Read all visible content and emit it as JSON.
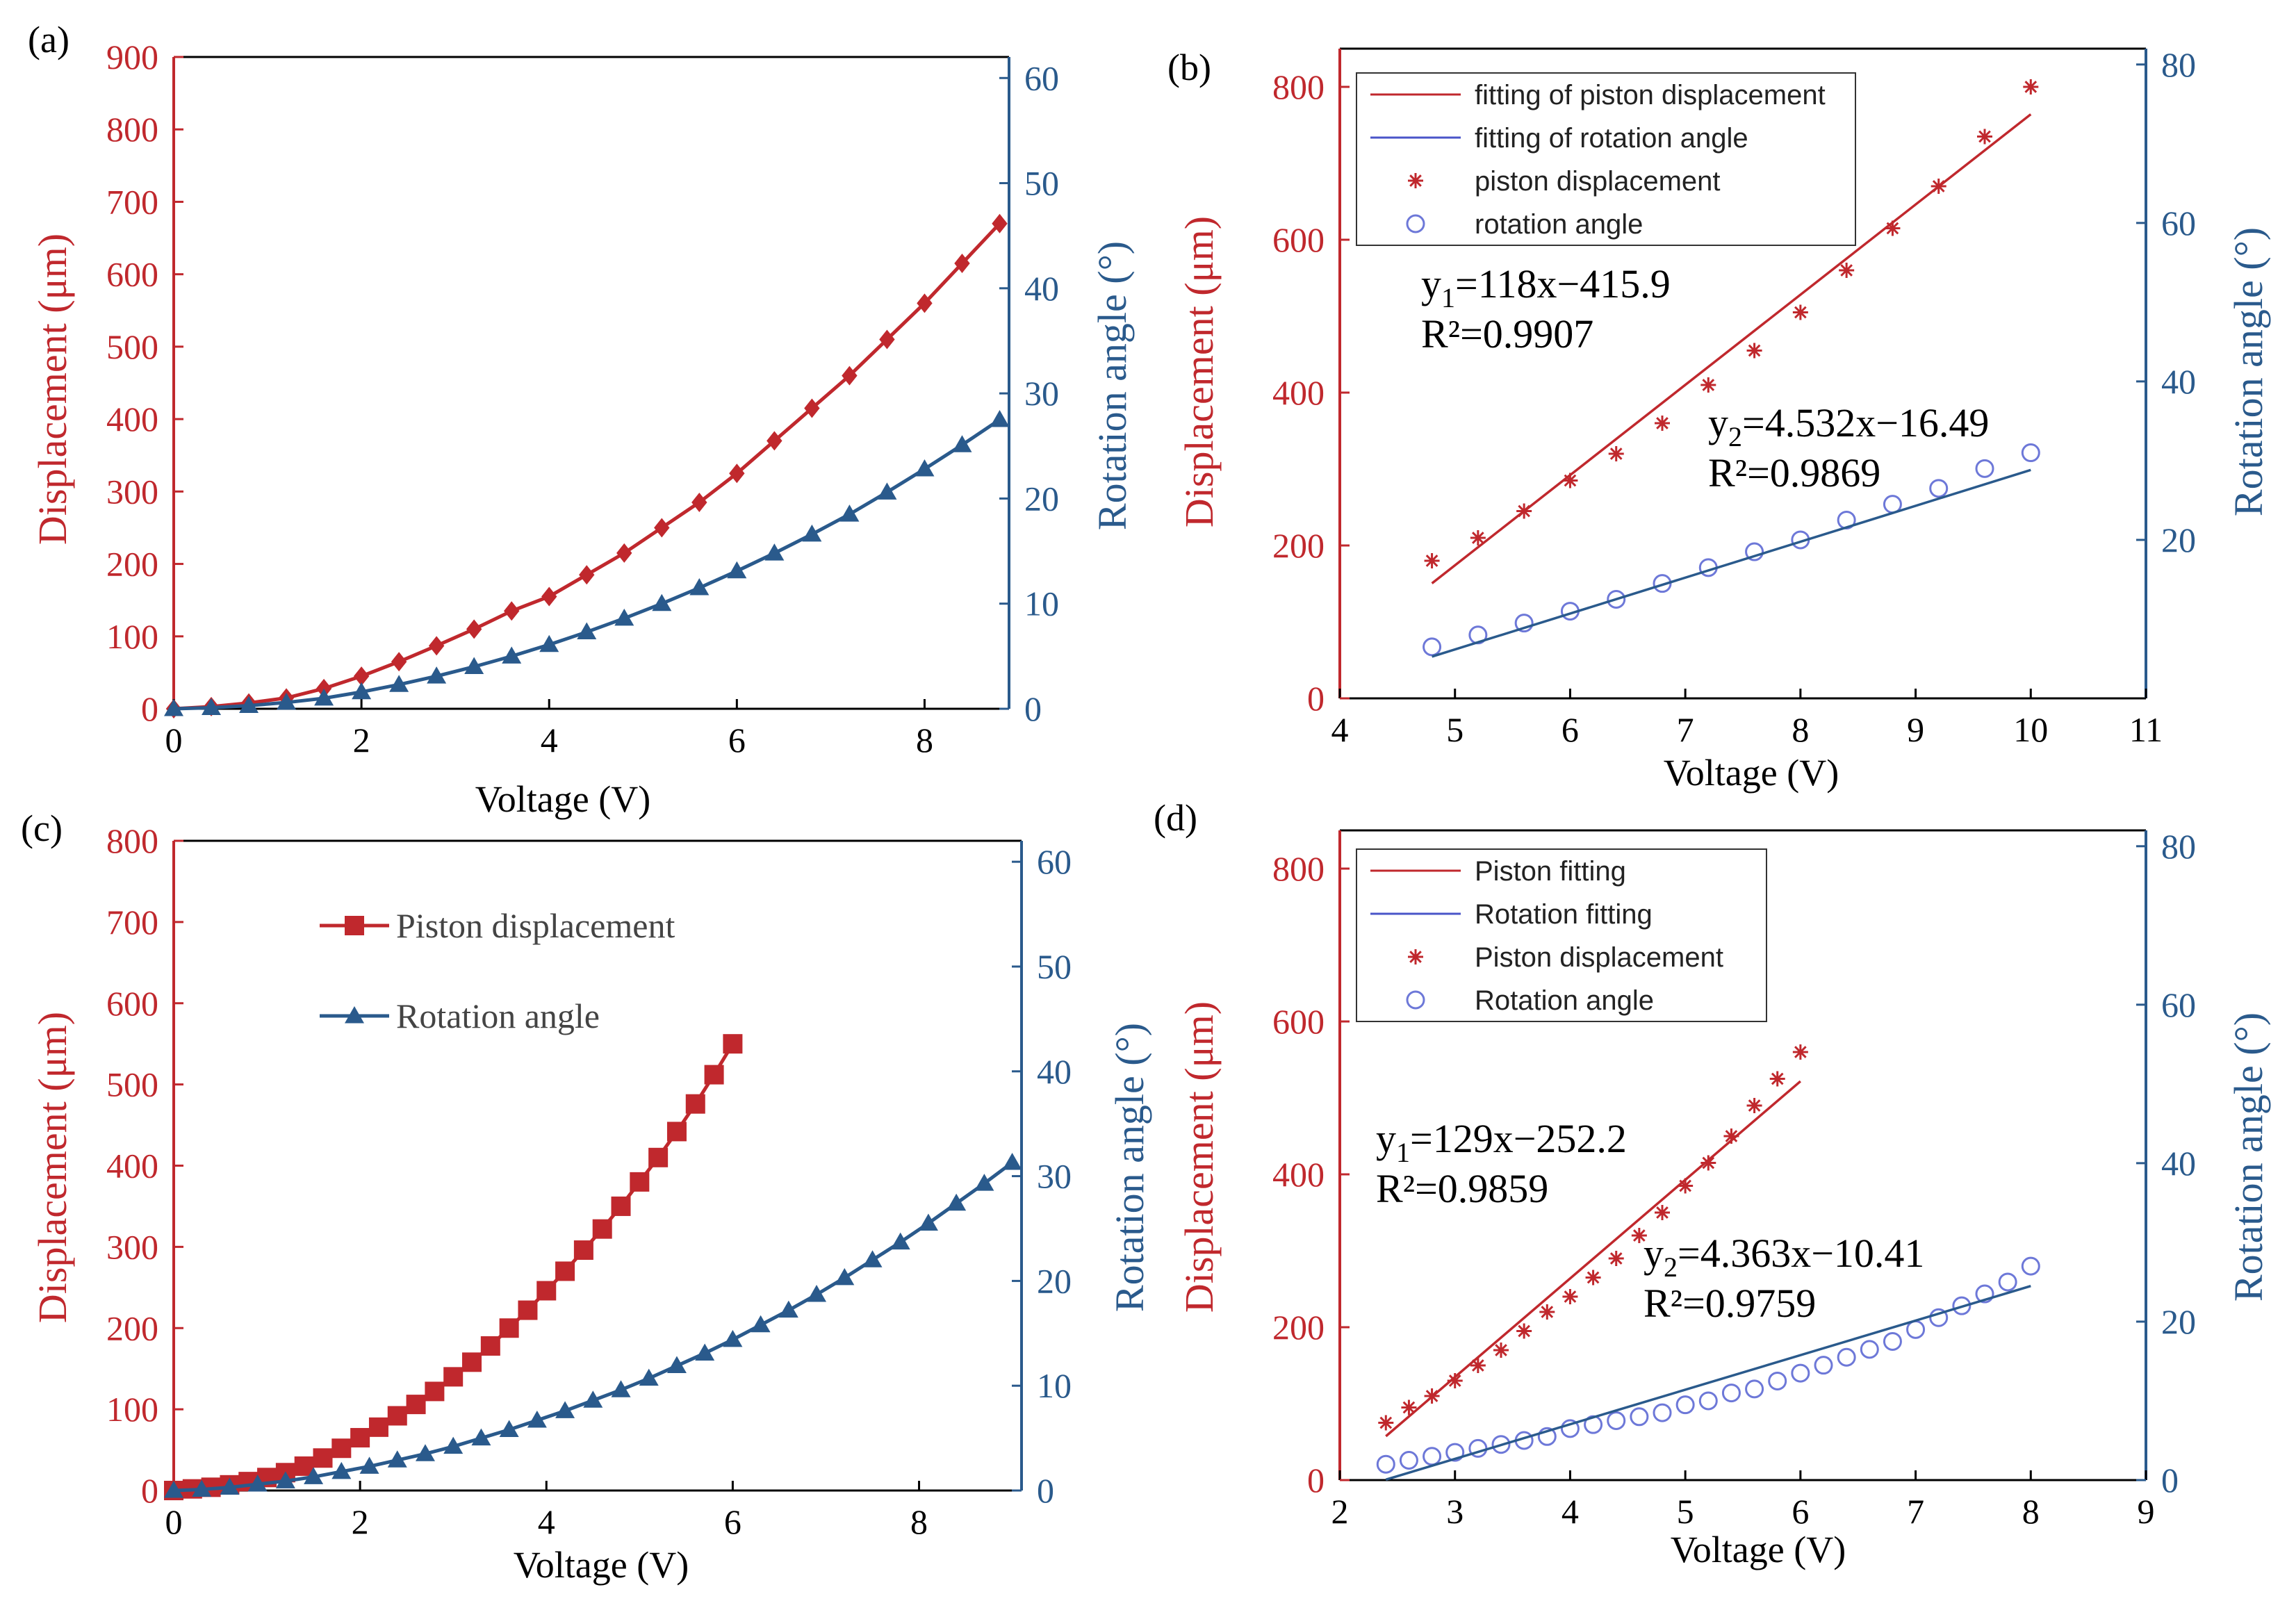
{
  "colors": {
    "red": "#c0282d",
    "blue": "#2a5a8c",
    "fit_red": "#c0282d",
    "fit_blue": "#2a5a8c",
    "open_marker": "#6d78d8"
  },
  "panels": [
    {
      "panel_label": "(a)",
      "xlabel": "Voltage (V)",
      "ylabel_left": "Displacement (μm)",
      "ylabel_right": "Rotation angle (°)",
      "legend": null
    },
    {
      "panel_label": "(b)",
      "xlabel": "Voltage (V)",
      "ylabel_left": "Displacement (μm)",
      "ylabel_right": "Rotation angle (°)",
      "legend": [
        "fitting of piston displacement",
        "fitting of rotation angle",
        "piston displacement",
        "rotation angle"
      ],
      "eq1": {
        "main": "y",
        "sub": "1",
        "rest": "=118x−415.9",
        "r2": "R²=0.9907"
      },
      "eq2": {
        "main": "y",
        "sub": "2",
        "rest": "=4.532x−16.49",
        "r2": "R²=0.9869"
      }
    },
    {
      "panel_label": "(c)",
      "xlabel": "Voltage (V)",
      "ylabel_left": "Displacement (μm)",
      "ylabel_right": "Rotation angle (°)",
      "legend": [
        "Piston displacement",
        "Rotation angle"
      ]
    },
    {
      "panel_label": "(d)",
      "xlabel": "Voltage (V)",
      "ylabel_left": "Displacement (μm)",
      "ylabel_right": "Rotation angle (°)",
      "legend": [
        "Piston fitting",
        "Rotation fitting",
        "Piston displacement",
        "Rotation angle"
      ],
      "eq1": {
        "main": "y",
        "sub": "1",
        "rest": "=129x−252.2",
        "r2": "R²=0.9859"
      },
      "eq2": {
        "main": "y",
        "sub": "2",
        "rest": "=4.363x−10.41",
        "r2": "R²=0.9759"
      }
    }
  ],
  "chart_data": [
    {
      "panel": "(a)",
      "type": "line",
      "xlim": [
        0,
        8.9
      ],
      "ylim_left": [
        0,
        900
      ],
      "ylim_right": [
        0,
        62
      ],
      "xticks": [
        0,
        2,
        4,
        6,
        8
      ],
      "yticks_left": [
        0,
        100,
        200,
        300,
        400,
        500,
        600,
        700,
        800,
        900
      ],
      "yticks_right": [
        0,
        10,
        20,
        30,
        40,
        50,
        60
      ],
      "series": [
        {
          "name": "",
          "axis": "left",
          "marker": "diamond",
          "x": [
            0,
            0.4,
            0.8,
            1.2,
            1.6,
            2.0,
            2.4,
            2.8,
            3.2,
            3.6,
            4.0,
            4.4,
            4.8,
            5.2,
            5.6,
            6.0,
            6.4,
            6.8,
            7.2,
            7.6,
            8.0,
            8.4,
            8.8
          ],
          "y": [
            0,
            3,
            8,
            15,
            28,
            45,
            65,
            87,
            110,
            135,
            155,
            185,
            215,
            250,
            285,
            325,
            370,
            415,
            460,
            510,
            560,
            615,
            670
          ]
        },
        {
          "name": "",
          "axis": "right",
          "marker": "triangle",
          "x": [
            0,
            0.4,
            0.8,
            1.2,
            1.6,
            2.0,
            2.4,
            2.8,
            3.2,
            3.6,
            4.0,
            4.4,
            4.8,
            5.2,
            5.6,
            6.0,
            6.4,
            6.8,
            7.2,
            7.6,
            8.0,
            8.4,
            8.8
          ],
          "y": [
            0,
            0.1,
            0.3,
            0.6,
            1.0,
            1.6,
            2.3,
            3.1,
            4.0,
            5.0,
            6.1,
            7.3,
            8.6,
            10.0,
            11.5,
            13.1,
            14.8,
            16.6,
            18.5,
            20.6,
            22.8,
            25.1,
            27.5
          ]
        }
      ]
    },
    {
      "panel": "(b)",
      "type": "scatter",
      "xlim": [
        4,
        11
      ],
      "ylim_left": [
        0,
        850
      ],
      "ylim_right": [
        0,
        82
      ],
      "xticks": [
        4,
        5,
        6,
        7,
        8,
        9,
        10,
        11
      ],
      "yticks_left": [
        0,
        200,
        400,
        600,
        800
      ],
      "yticks_right": [
        20,
        40,
        60,
        80
      ],
      "series": [
        {
          "name": "piston displacement",
          "axis": "left",
          "marker": "star",
          "x": [
            4.8,
            5.2,
            5.6,
            6.0,
            6.4,
            6.8,
            7.2,
            7.6,
            8.0,
            8.4,
            8.8,
            9.2,
            9.6,
            10.0
          ],
          "y": [
            180,
            210,
            245,
            285,
            320,
            360,
            410,
            455,
            505,
            560,
            615,
            670,
            735,
            800
          ]
        },
        {
          "name": "rotation angle",
          "axis": "right",
          "marker": "circle",
          "x": [
            4.8,
            5.2,
            5.6,
            6.0,
            6.4,
            6.8,
            7.2,
            7.6,
            8.0,
            8.4,
            8.8,
            9.2,
            9.6,
            10.0
          ],
          "y": [
            6.5,
            8.0,
            9.5,
            11.0,
            12.5,
            14.5,
            16.5,
            18.5,
            20.0,
            22.5,
            24.5,
            26.5,
            29.0,
            31.0
          ]
        },
        {
          "name": "fitting of piston displacement",
          "axis": "left",
          "fit": {
            "slope": 118,
            "intercept": -415.9,
            "x": [
              4.8,
              10.0
            ]
          }
        },
        {
          "name": "fitting of rotation angle",
          "axis": "right",
          "fit": {
            "slope": 4.532,
            "intercept": -16.49,
            "x": [
              4.8,
              10.0
            ]
          }
        }
      ]
    },
    {
      "panel": "(c)",
      "type": "line",
      "xlim": [
        0,
        9.1
      ],
      "ylim_left": [
        0,
        800
      ],
      "ylim_right": [
        0,
        62
      ],
      "xticks": [
        0,
        2,
        4,
        6,
        8
      ],
      "yticks_left": [
        0,
        100,
        200,
        300,
        400,
        500,
        600,
        700,
        800
      ],
      "yticks_right": [
        0,
        10,
        20,
        30,
        40,
        50,
        60
      ],
      "series": [
        {
          "name": "Piston displacement",
          "axis": "left",
          "marker": "square",
          "x": [
            0,
            0.2,
            0.4,
            0.6,
            0.8,
            1.0,
            1.2,
            1.4,
            1.6,
            1.8,
            2.0,
            2.2,
            2.4,
            2.6,
            2.8,
            3.0,
            3.2,
            3.4,
            3.6,
            3.8,
            4.0,
            4.2,
            4.4,
            4.6,
            4.8,
            5.0,
            5.2,
            5.4,
            5.6,
            5.8,
            6.0
          ],
          "y": [
            0,
            2,
            4,
            7,
            11,
            16,
            22,
            30,
            40,
            52,
            65,
            78,
            92,
            106,
            122,
            140,
            158,
            178,
            200,
            222,
            246,
            270,
            296,
            322,
            350,
            380,
            410,
            442,
            476,
            512,
            550
          ]
        },
        {
          "name": "Rotation angle",
          "axis": "right",
          "marker": "triangle",
          "x": [
            0,
            0.3,
            0.6,
            0.9,
            1.2,
            1.5,
            1.8,
            2.1,
            2.4,
            2.7,
            3.0,
            3.3,
            3.6,
            3.9,
            4.2,
            4.5,
            4.8,
            5.1,
            5.4,
            5.7,
            6.0,
            6.3,
            6.6,
            6.9,
            7.2,
            7.5,
            7.8,
            8.1,
            8.4,
            8.7,
            9.0
          ],
          "y": [
            0,
            0.1,
            0.3,
            0.6,
            0.9,
            1.3,
            1.8,
            2.3,
            2.9,
            3.5,
            4.2,
            5.0,
            5.8,
            6.7,
            7.6,
            8.6,
            9.6,
            10.7,
            11.9,
            13.1,
            14.4,
            15.8,
            17.2,
            18.7,
            20.3,
            22.0,
            23.7,
            25.5,
            27.4,
            29.3,
            31.3
          ]
        }
      ]
    },
    {
      "panel": "(d)",
      "type": "scatter",
      "xlim": [
        2,
        9
      ],
      "ylim_left": [
        0,
        850
      ],
      "ylim_right": [
        0,
        82
      ],
      "xticks": [
        2,
        3,
        4,
        5,
        6,
        7,
        8,
        9
      ],
      "yticks_left": [
        0,
        200,
        400,
        600,
        800
      ],
      "yticks_right": [
        0,
        20,
        40,
        60,
        80
      ],
      "series": [
        {
          "name": "Piston displacement",
          "axis": "left",
          "marker": "star",
          "x": [
            2.4,
            2.6,
            2.8,
            3.0,
            3.2,
            3.4,
            3.6,
            3.8,
            4.0,
            4.2,
            4.4,
            4.6,
            4.8,
            5.0,
            5.2,
            5.4,
            5.6,
            5.8,
            6.0
          ],
          "y": [
            75,
            95,
            110,
            130,
            150,
            170,
            195,
            220,
            240,
            265,
            290,
            320,
            350,
            385,
            415,
            450,
            490,
            525,
            560
          ]
        },
        {
          "name": "Rotation angle",
          "axis": "right",
          "marker": "circle",
          "x": [
            2.4,
            2.6,
            2.8,
            3.0,
            3.2,
            3.4,
            3.6,
            3.8,
            4.0,
            4.2,
            4.4,
            4.6,
            4.8,
            5.0,
            5.2,
            5.4,
            5.6,
            5.8,
            6.0,
            6.2,
            6.4,
            6.6,
            6.8,
            7.0,
            7.2,
            7.4,
            7.6,
            7.8,
            8.0
          ],
          "y": [
            2.0,
            2.5,
            3.0,
            3.5,
            4.0,
            4.5,
            5.0,
            5.5,
            6.5,
            7.0,
            7.5,
            8.0,
            8.5,
            9.5,
            10.0,
            11.0,
            11.5,
            12.5,
            13.5,
            14.5,
            15.5,
            16.5,
            17.5,
            19.0,
            20.5,
            22.0,
            23.5,
            25.0,
            27.0
          ]
        },
        {
          "name": "Piston fitting",
          "axis": "left",
          "fit": {
            "slope": 129,
            "intercept": -252.2,
            "x": [
              2.4,
              6.0
            ]
          }
        },
        {
          "name": "Rotation fitting",
          "axis": "right",
          "fit": {
            "slope": 4.363,
            "intercept": -10.41,
            "x": [
              2.4,
              8.0
            ]
          }
        }
      ]
    }
  ]
}
